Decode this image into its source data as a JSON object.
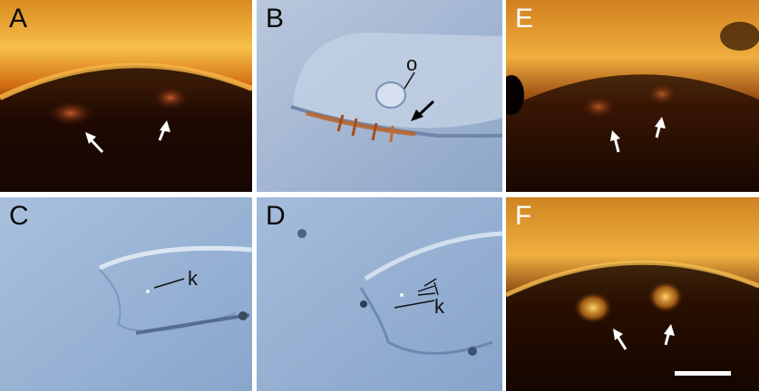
{
  "panels": {
    "A": {
      "label": "A"
    },
    "B": {
      "label": "B",
      "annotations": {
        "o": "o"
      }
    },
    "C": {
      "label": "C",
      "annotations": {
        "k": "k"
      }
    },
    "D": {
      "label": "D",
      "annotations": {
        "k": "k"
      }
    },
    "E": {
      "label": "E"
    },
    "F": {
      "label": "F"
    }
  },
  "colors": {
    "fluorescence_orange": "#f2a531",
    "fluorescence_dark": "#140700",
    "dic_blue": "#9fb6d4",
    "arrow_white": "#ffffff",
    "arrow_black": "#000000",
    "scale_bar": "#ffffff"
  }
}
